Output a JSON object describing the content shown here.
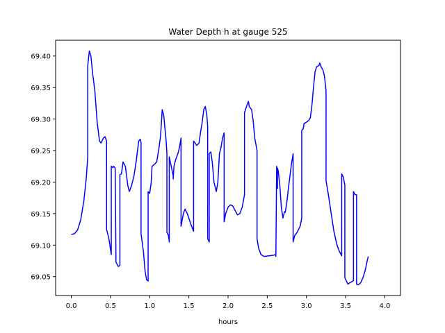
{
  "chart_data": {
    "type": "line",
    "title": "Water Depth h at gauge 525",
    "xlabel": "hours",
    "ylabel": "",
    "xlim": [
      -0.2,
      4.2
    ],
    "ylim": [
      69.02,
      69.425
    ],
    "xticks": [
      0.0,
      0.5,
      1.0,
      1.5,
      2.0,
      2.5,
      3.0,
      3.5,
      4.0
    ],
    "xtick_labels": [
      "0.0",
      "0.5",
      "1.0",
      "1.5",
      "2.0",
      "2.5",
      "3.0",
      "3.5",
      "4.0"
    ],
    "yticks": [
      69.05,
      69.1,
      69.15,
      69.2,
      69.25,
      69.3,
      69.35,
      69.4
    ],
    "ytick_labels": [
      "69.05",
      "69.10",
      "69.15",
      "69.20",
      "69.25",
      "69.30",
      "69.35",
      "69.40"
    ],
    "grid": false,
    "legend": "none",
    "series": [
      {
        "color": "#0000ff",
        "points": [
          [
            0.0,
            69.117
          ],
          [
            0.04,
            69.118
          ],
          [
            0.08,
            69.124
          ],
          [
            0.12,
            69.14
          ],
          [
            0.16,
            69.17
          ],
          [
            0.19,
            69.205
          ],
          [
            0.21,
            69.24
          ],
          [
            0.21,
            69.385
          ],
          [
            0.23,
            69.408
          ],
          [
            0.25,
            69.4
          ],
          [
            0.27,
            69.375
          ],
          [
            0.3,
            69.345
          ],
          [
            0.33,
            69.295
          ],
          [
            0.36,
            69.265
          ],
          [
            0.38,
            69.262
          ],
          [
            0.41,
            69.27
          ],
          [
            0.43,
            69.272
          ],
          [
            0.45,
            69.265
          ],
          [
            0.45,
            69.125
          ],
          [
            0.48,
            69.11
          ],
          [
            0.51,
            69.085
          ],
          [
            0.51,
            69.225
          ],
          [
            0.53,
            69.223
          ],
          [
            0.54,
            69.225
          ],
          [
            0.56,
            69.222
          ],
          [
            0.57,
            69.073
          ],
          [
            0.6,
            69.066
          ],
          [
            0.62,
            69.068
          ],
          [
            0.62,
            69.212
          ],
          [
            0.64,
            69.213
          ],
          [
            0.66,
            69.232
          ],
          [
            0.69,
            69.225
          ],
          [
            0.72,
            69.195
          ],
          [
            0.74,
            69.185
          ],
          [
            0.77,
            69.195
          ],
          [
            0.8,
            69.21
          ],
          [
            0.83,
            69.235
          ],
          [
            0.86,
            69.265
          ],
          [
            0.88,
            69.268
          ],
          [
            0.89,
            69.262
          ],
          [
            0.89,
            69.118
          ],
          [
            0.92,
            69.09
          ],
          [
            0.94,
            69.06
          ],
          [
            0.96,
            69.045
          ],
          [
            0.98,
            69.043
          ],
          [
            0.98,
            69.185
          ],
          [
            1.0,
            69.182
          ],
          [
            1.02,
            69.2
          ],
          [
            1.03,
            69.225
          ],
          [
            1.06,
            69.228
          ],
          [
            1.09,
            69.232
          ],
          [
            1.12,
            69.255
          ],
          [
            1.14,
            69.275
          ],
          [
            1.16,
            69.315
          ],
          [
            1.18,
            69.305
          ],
          [
            1.21,
            69.265
          ],
          [
            1.22,
            69.245
          ],
          [
            1.22,
            69.12
          ],
          [
            1.24,
            69.115
          ],
          [
            1.25,
            69.105
          ],
          [
            1.25,
            69.24
          ],
          [
            1.27,
            69.228
          ],
          [
            1.3,
            69.21
          ],
          [
            1.3,
            69.205
          ],
          [
            1.31,
            69.225
          ],
          [
            1.33,
            69.235
          ],
          [
            1.36,
            69.245
          ],
          [
            1.38,
            69.255
          ],
          [
            1.4,
            69.27
          ],
          [
            1.4,
            69.13
          ],
          [
            1.43,
            69.15
          ],
          [
            1.45,
            69.157
          ],
          [
            1.48,
            69.15
          ],
          [
            1.52,
            69.135
          ],
          [
            1.55,
            69.125
          ],
          [
            1.56,
            69.122
          ],
          [
            1.56,
            69.265
          ],
          [
            1.58,
            69.262
          ],
          [
            1.6,
            69.258
          ],
          [
            1.63,
            69.262
          ],
          [
            1.65,
            69.28
          ],
          [
            1.67,
            69.295
          ],
          [
            1.69,
            69.315
          ],
          [
            1.71,
            69.32
          ],
          [
            1.73,
            69.305
          ],
          [
            1.74,
            69.288
          ],
          [
            1.74,
            69.11
          ],
          [
            1.76,
            69.105
          ],
          [
            1.76,
            69.245
          ],
          [
            1.78,
            69.248
          ],
          [
            1.8,
            69.23
          ],
          [
            1.82,
            69.2
          ],
          [
            1.85,
            69.185
          ],
          [
            1.87,
            69.2
          ],
          [
            1.89,
            69.245
          ],
          [
            1.91,
            69.255
          ],
          [
            1.93,
            69.27
          ],
          [
            1.95,
            69.278
          ],
          [
            1.95,
            69.137
          ],
          [
            1.97,
            69.15
          ],
          [
            2.0,
            69.16
          ],
          [
            2.03,
            69.164
          ],
          [
            2.06,
            69.162
          ],
          [
            2.09,
            69.155
          ],
          [
            2.12,
            69.148
          ],
          [
            2.15,
            69.15
          ],
          [
            2.18,
            69.16
          ],
          [
            2.21,
            69.18
          ],
          [
            2.21,
            69.31
          ],
          [
            2.23,
            69.318
          ],
          [
            2.25,
            69.325
          ],
          [
            2.26,
            69.328
          ],
          [
            2.27,
            69.32
          ],
          [
            2.3,
            69.315
          ],
          [
            2.32,
            69.298
          ],
          [
            2.34,
            69.27
          ],
          [
            2.37,
            69.25
          ],
          [
            2.37,
            69.11
          ],
          [
            2.39,
            69.095
          ],
          [
            2.42,
            69.085
          ],
          [
            2.46,
            69.082
          ],
          [
            2.52,
            69.083
          ],
          [
            2.58,
            69.084
          ],
          [
            2.61,
            69.085
          ],
          [
            2.61,
            69.082
          ],
          [
            2.62,
            69.225
          ],
          [
            2.63,
            69.19
          ],
          [
            2.63,
            69.222
          ],
          [
            2.64,
            69.218
          ],
          [
            2.66,
            69.195
          ],
          [
            2.68,
            69.16
          ],
          [
            2.7,
            69.143
          ],
          [
            2.72,
            69.153
          ],
          [
            2.73,
            69.152
          ],
          [
            2.75,
            69.168
          ],
          [
            2.77,
            69.19
          ],
          [
            2.79,
            69.21
          ],
          [
            2.81,
            69.23
          ],
          [
            2.83,
            69.245
          ],
          [
            2.83,
            69.105
          ],
          [
            2.85,
            69.115
          ],
          [
            2.88,
            69.12
          ],
          [
            2.92,
            69.13
          ],
          [
            2.94,
            69.143
          ],
          [
            2.94,
            69.282
          ],
          [
            2.96,
            69.285
          ],
          [
            2.97,
            69.293
          ],
          [
            3.0,
            69.295
          ],
          [
            3.03,
            69.298
          ],
          [
            3.05,
            69.302
          ],
          [
            3.07,
            69.322
          ],
          [
            3.09,
            69.35
          ],
          [
            3.11,
            69.375
          ],
          [
            3.13,
            69.383
          ],
          [
            3.16,
            69.385
          ],
          [
            3.17,
            69.389
          ],
          [
            3.19,
            69.382
          ],
          [
            3.21,
            69.378
          ],
          [
            3.23,
            69.368
          ],
          [
            3.25,
            69.345
          ],
          [
            3.25,
            69.202
          ],
          [
            3.28,
            69.18
          ],
          [
            3.31,
            69.155
          ],
          [
            3.35,
            69.122
          ],
          [
            3.39,
            69.1
          ],
          [
            3.42,
            69.09
          ],
          [
            3.45,
            69.083
          ],
          [
            3.45,
            69.213
          ],
          [
            3.47,
            69.208
          ],
          [
            3.49,
            69.195
          ],
          [
            3.49,
            69.048
          ],
          [
            3.51,
            69.043
          ],
          [
            3.53,
            69.038
          ],
          [
            3.55,
            69.04
          ],
          [
            3.58,
            69.042
          ],
          [
            3.6,
            69.044
          ],
          [
            3.6,
            69.185
          ],
          [
            3.62,
            69.18
          ],
          [
            3.64,
            69.18
          ],
          [
            3.64,
            69.038
          ],
          [
            3.66,
            69.037
          ],
          [
            3.69,
            69.04
          ],
          [
            3.72,
            69.048
          ],
          [
            3.75,
            69.06
          ],
          [
            3.78,
            69.078
          ],
          [
            3.79,
            69.082
          ]
        ]
      }
    ]
  }
}
